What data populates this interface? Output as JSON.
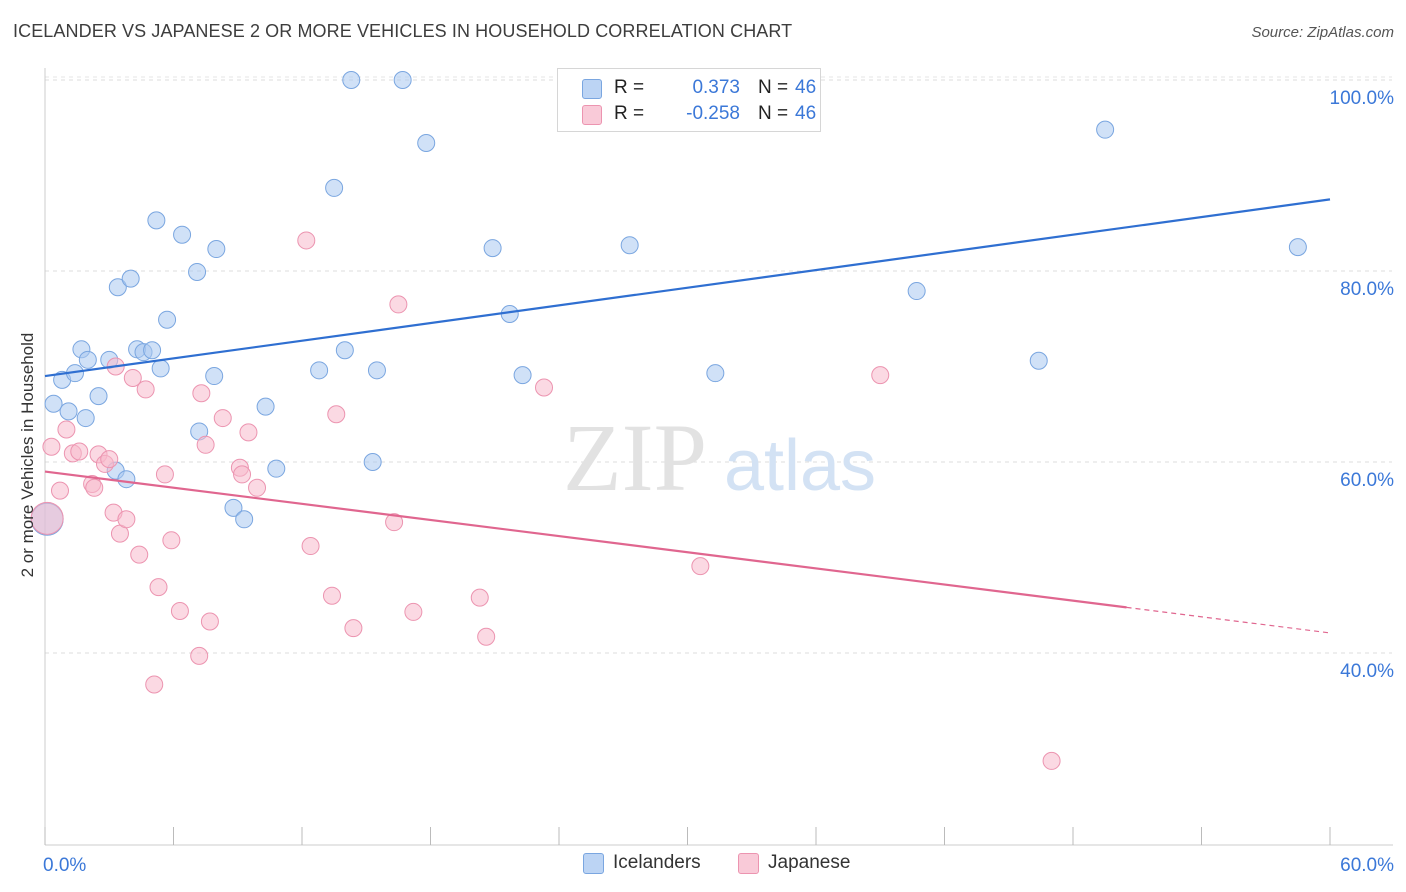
{
  "header": {
    "title": "ICELANDER VS JAPANESE 2 OR MORE VEHICLES IN HOUSEHOLD CORRELATION CHART",
    "source": "Source: ZipAtlas.com"
  },
  "watermark": {
    "zip": "ZIP",
    "atlas": "atlas"
  },
  "legend": {
    "rows": [
      {
        "r_label": "R =",
        "r_value": "0.373",
        "n_label": "N =",
        "n_value": "46"
      },
      {
        "r_label": "R =",
        "r_value": "-0.258",
        "n_label": "N =",
        "n_value": "46"
      }
    ]
  },
  "bottom_legend": {
    "icelanders": "Icelanders",
    "japanese": "Japanese"
  },
  "colors": {
    "icelanders_fill": "#aac8f0",
    "icelanders_stroke": "#7aa6e0",
    "icelanders_line": "#2f6fd1",
    "japanese_fill": "#f7b9cc",
    "japanese_stroke": "#ec94b0",
    "japanese_line": "#e0668f",
    "axis_label": "#3b78d8"
  },
  "chart_data": {
    "type": "scatter",
    "title": "ICELANDER VS JAPANESE 2 OR MORE VEHICLES IN HOUSEHOLD CORRELATION CHART",
    "xlabel": "",
    "ylabel": "2 or more Vehicles in Household",
    "xlim": [
      0,
      60
    ],
    "ylim": [
      20,
      101
    ],
    "x_tick_labels": [
      "0.0%",
      "60.0%"
    ],
    "y_ticks": [
      40,
      60,
      80,
      100
    ],
    "y_tick_labels": [
      "40.0%",
      "60.0%",
      "80.0%",
      "100.0%"
    ],
    "grid": true,
    "legend_position": "top-center",
    "series": [
      {
        "name": "Icelanders",
        "r": 0.373,
        "n": 46,
        "trend": {
          "x": [
            0,
            60
          ],
          "y": [
            69.0,
            87.5
          ],
          "dashed_from": null
        },
        "points": [
          [
            0.1,
            54.0
          ],
          [
            0.4,
            66.1
          ],
          [
            0.8,
            68.6
          ],
          [
            1.1,
            65.3
          ],
          [
            1.4,
            69.3
          ],
          [
            1.7,
            71.8
          ],
          [
            1.9,
            64.6
          ],
          [
            2.0,
            70.7
          ],
          [
            2.5,
            66.9
          ],
          [
            3.0,
            70.7
          ],
          [
            3.3,
            59.1
          ],
          [
            3.4,
            78.3
          ],
          [
            3.8,
            58.2
          ],
          [
            4.0,
            79.2
          ],
          [
            4.3,
            71.8
          ],
          [
            4.6,
            71.5
          ],
          [
            5.0,
            71.7
          ],
          [
            5.2,
            85.3
          ],
          [
            5.4,
            69.8
          ],
          [
            5.7,
            74.9
          ],
          [
            6.4,
            83.8
          ],
          [
            7.1,
            79.9
          ],
          [
            7.2,
            63.2
          ],
          [
            7.9,
            69.0
          ],
          [
            8.0,
            82.3
          ],
          [
            8.8,
            55.2
          ],
          [
            9.3,
            54.0
          ],
          [
            10.3,
            65.8
          ],
          [
            10.8,
            59.3
          ],
          [
            12.8,
            69.6
          ],
          [
            13.5,
            88.7
          ],
          [
            14.0,
            71.7
          ],
          [
            14.3,
            100.0
          ],
          [
            15.3,
            60.0
          ],
          [
            15.5,
            69.6
          ],
          [
            16.7,
            100.0
          ],
          [
            17.8,
            93.4
          ],
          [
            20.9,
            82.4
          ],
          [
            21.7,
            75.5
          ],
          [
            22.3,
            69.1
          ],
          [
            27.3,
            82.7
          ],
          [
            31.3,
            69.3
          ],
          [
            40.7,
            77.9
          ],
          [
            46.4,
            70.6
          ],
          [
            49.5,
            94.8
          ],
          [
            58.5,
            82.5
          ]
        ]
      },
      {
        "name": "Japanese",
        "r": -0.258,
        "n": 46,
        "trend": {
          "x": [
            0,
            60
          ],
          "y": [
            59.0,
            42.1
          ],
          "dashed_from": 50.5
        },
        "points": [
          [
            0.1,
            54.1
          ],
          [
            0.3,
            61.6
          ],
          [
            0.7,
            57.0
          ],
          [
            1.0,
            63.4
          ],
          [
            1.3,
            60.9
          ],
          [
            1.6,
            61.1
          ],
          [
            2.2,
            57.7
          ],
          [
            2.3,
            57.3
          ],
          [
            2.5,
            60.8
          ],
          [
            2.8,
            59.8
          ],
          [
            3.0,
            60.3
          ],
          [
            3.2,
            54.7
          ],
          [
            3.3,
            70.0
          ],
          [
            3.5,
            52.5
          ],
          [
            3.8,
            54.0
          ],
          [
            4.1,
            68.8
          ],
          [
            4.4,
            50.3
          ],
          [
            4.7,
            67.6
          ],
          [
            5.1,
            36.7
          ],
          [
            5.3,
            46.9
          ],
          [
            5.6,
            58.7
          ],
          [
            5.9,
            51.8
          ],
          [
            6.3,
            44.4
          ],
          [
            7.2,
            39.7
          ],
          [
            7.3,
            67.2
          ],
          [
            7.5,
            61.8
          ],
          [
            7.7,
            43.3
          ],
          [
            8.3,
            64.6
          ],
          [
            9.1,
            59.4
          ],
          [
            9.2,
            58.7
          ],
          [
            9.5,
            63.1
          ],
          [
            9.9,
            57.3
          ],
          [
            12.2,
            83.2
          ],
          [
            12.4,
            51.2
          ],
          [
            13.4,
            46.0
          ],
          [
            13.6,
            65.0
          ],
          [
            14.4,
            42.6
          ],
          [
            16.3,
            53.7
          ],
          [
            16.5,
            76.5
          ],
          [
            17.2,
            44.3
          ],
          [
            20.3,
            45.8
          ],
          [
            20.6,
            41.7
          ],
          [
            23.3,
            67.8
          ],
          [
            30.6,
            49.1
          ],
          [
            39.0,
            69.1
          ],
          [
            47.0,
            28.7
          ]
        ]
      }
    ]
  }
}
